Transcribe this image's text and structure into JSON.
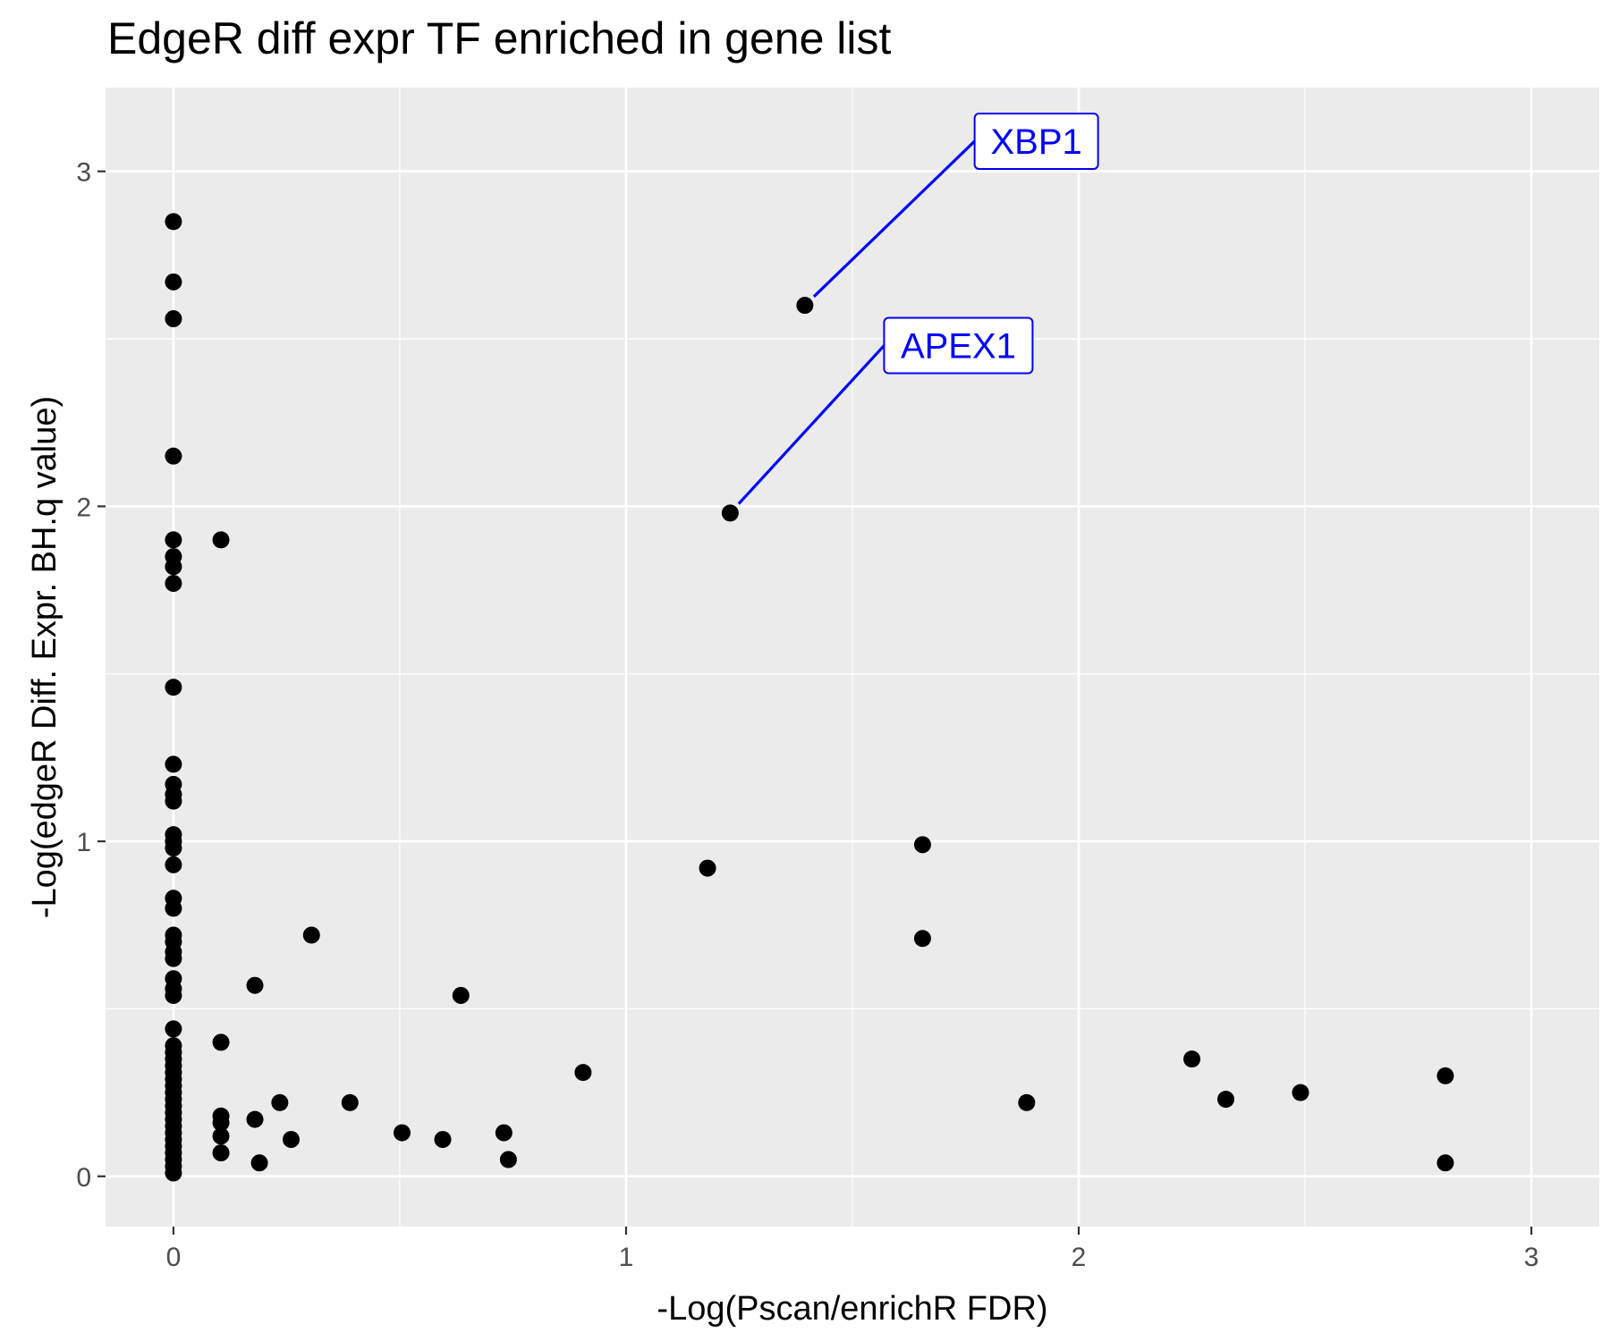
{
  "chart_data": {
    "type": "scatter",
    "title": "EdgeR diff expr TF enriched in gene list",
    "xlabel": "-Log(Pscan/enrichR FDR)",
    "ylabel": "-Log(edgeR Diff. Expr. BH.q value)",
    "xlim": [
      -0.15,
      3.15
    ],
    "ylim": [
      -0.15,
      3.25
    ],
    "xticks": [
      0,
      1,
      2,
      3
    ],
    "yticks": [
      0,
      1,
      2,
      3
    ],
    "x_tick_labels": [
      "0",
      "1",
      "2",
      "3"
    ],
    "y_tick_labels": [
      "0",
      "1",
      "2",
      "3"
    ],
    "grid": true,
    "panel_color": "#ebebeb",
    "grid_color": "#ffffff",
    "point_color": "#000000",
    "annotation_color": "#0000ff",
    "points": [
      {
        "x": 0,
        "y": 2.85
      },
      {
        "x": 0,
        "y": 2.67
      },
      {
        "x": 0,
        "y": 2.56
      },
      {
        "x": 0,
        "y": 2.15
      },
      {
        "x": 0,
        "y": 1.9
      },
      {
        "x": 0,
        "y": 1.85
      },
      {
        "x": 0,
        "y": 1.82
      },
      {
        "x": 0,
        "y": 1.77
      },
      {
        "x": 0,
        "y": 1.46
      },
      {
        "x": 0,
        "y": 1.23
      },
      {
        "x": 0,
        "y": 1.17
      },
      {
        "x": 0,
        "y": 1.14
      },
      {
        "x": 0,
        "y": 1.12
      },
      {
        "x": 0,
        "y": 1.02
      },
      {
        "x": 0,
        "y": 1.0
      },
      {
        "x": 0,
        "y": 0.98
      },
      {
        "x": 0,
        "y": 0.93
      },
      {
        "x": 0,
        "y": 0.83
      },
      {
        "x": 0,
        "y": 0.8
      },
      {
        "x": 0,
        "y": 0.72
      },
      {
        "x": 0,
        "y": 0.7
      },
      {
        "x": 0,
        "y": 0.67
      },
      {
        "x": 0,
        "y": 0.65
      },
      {
        "x": 0,
        "y": 0.59
      },
      {
        "x": 0,
        "y": 0.56
      },
      {
        "x": 0,
        "y": 0.54
      },
      {
        "x": 0,
        "y": 0.44
      },
      {
        "x": 0,
        "y": 0.39
      },
      {
        "x": 0,
        "y": 0.37
      },
      {
        "x": 0,
        "y": 0.35
      },
      {
        "x": 0,
        "y": 0.33
      },
      {
        "x": 0,
        "y": 0.31
      },
      {
        "x": 0,
        "y": 0.29
      },
      {
        "x": 0,
        "y": 0.27
      },
      {
        "x": 0,
        "y": 0.25
      },
      {
        "x": 0,
        "y": 0.23
      },
      {
        "x": 0,
        "y": 0.21
      },
      {
        "x": 0,
        "y": 0.19
      },
      {
        "x": 0,
        "y": 0.17
      },
      {
        "x": 0,
        "y": 0.15
      },
      {
        "x": 0,
        "y": 0.13
      },
      {
        "x": 0,
        "y": 0.11
      },
      {
        "x": 0,
        "y": 0.09
      },
      {
        "x": 0,
        "y": 0.07
      },
      {
        "x": 0,
        "y": 0.05
      },
      {
        "x": 0,
        "y": 0.03
      },
      {
        "x": 0,
        "y": 0.01
      },
      {
        "x": 0.105,
        "y": 1.9
      },
      {
        "x": 0.105,
        "y": 0.4
      },
      {
        "x": 0.105,
        "y": 0.18
      },
      {
        "x": 0.105,
        "y": 0.16
      },
      {
        "x": 0.105,
        "y": 0.12
      },
      {
        "x": 0.105,
        "y": 0.07
      },
      {
        "x": 0.18,
        "y": 0.57
      },
      {
        "x": 0.18,
        "y": 0.17
      },
      {
        "x": 0.19,
        "y": 0.04
      },
      {
        "x": 0.235,
        "y": 0.22
      },
      {
        "x": 0.26,
        "y": 0.11
      },
      {
        "x": 0.305,
        "y": 0.72
      },
      {
        "x": 0.39,
        "y": 0.22
      },
      {
        "x": 0.505,
        "y": 0.13
      },
      {
        "x": 0.595,
        "y": 0.11
      },
      {
        "x": 0.635,
        "y": 0.54
      },
      {
        "x": 0.73,
        "y": 0.13
      },
      {
        "x": 0.74,
        "y": 0.05
      },
      {
        "x": 0.905,
        "y": 0.31
      },
      {
        "x": 1.18,
        "y": 0.92
      },
      {
        "x": 1.23,
        "y": 1.98
      },
      {
        "x": 1.395,
        "y": 2.6
      },
      {
        "x": 1.655,
        "y": 0.99
      },
      {
        "x": 1.655,
        "y": 0.71
      },
      {
        "x": 1.885,
        "y": 0.22
      },
      {
        "x": 2.25,
        "y": 0.35
      },
      {
        "x": 2.325,
        "y": 0.23
      },
      {
        "x": 2.49,
        "y": 0.25
      },
      {
        "x": 2.81,
        "y": 0.3
      },
      {
        "x": 2.81,
        "y": 0.04
      }
    ],
    "annotations": [
      {
        "label": "XBP1",
        "x": 1.395,
        "y": 2.6,
        "label_x": 1.77,
        "label_y": 3.09
      },
      {
        "label": "APEX1",
        "x": 1.23,
        "y": 1.98,
        "label_x": 1.57,
        "label_y": 2.48
      }
    ]
  }
}
